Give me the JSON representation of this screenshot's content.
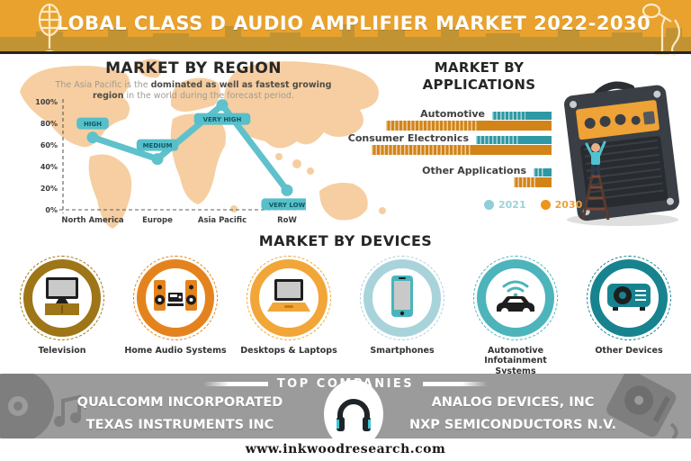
{
  "header": {
    "title": "GLOBAL CLASS D AUDIO AMPLIFIER MARKET 2022-2030"
  },
  "region": {
    "title": "MARKET BY REGION",
    "subtitle": [
      {
        "text": "The Asia Pacific is the ",
        "bold": false
      },
      {
        "text": "dominated as well as fastest growing region",
        "bold": true
      },
      {
        "text": " in the world during the forecast period.",
        "bold": false
      }
    ]
  },
  "applications": {
    "title_line1": "MARKET BY",
    "title_line2": "APPLICATIONS",
    "legend": [
      {
        "label": "2021",
        "dot_color": "#8FCEDA",
        "text_color": "#9ED2D9"
      },
      {
        "label": "2030",
        "dot_color": "#F0931C",
        "text_color": "#EFA03C"
      }
    ]
  },
  "devices": {
    "title": "MARKET BY DEVICES",
    "items": [
      {
        "label": "Television",
        "icon": "television-icon",
        "ring_color": "#9E7517"
      },
      {
        "label": "Home Audio Systems",
        "icon": "home-audio-icon",
        "ring_color": "#E4831D"
      },
      {
        "label": "Desktops & Laptops",
        "icon": "laptop-icon",
        "ring_color": "#F1A637"
      },
      {
        "label": "Smartphones",
        "icon": "smartphone-icon",
        "ring_color": "#A9D3DA"
      },
      {
        "label": "Automotive Infotainment Systems",
        "icon": "car-infotainment-icon",
        "ring_color": "#4DB4BC"
      },
      {
        "label": "Other Devices",
        "icon": "projector-icon",
        "ring_color": "#17838F"
      }
    ]
  },
  "top_companies": {
    "heading": "TOP COMPANIES",
    "left": [
      "QUALCOMM INCORPORATED",
      "TEXAS INSTRUMENTS INC"
    ],
    "right": [
      "ANALOG DEVICES, INC",
      "NXP SEMICONDUCTORS N.V."
    ],
    "center_icon": "headphones-icon"
  },
  "footer": {
    "website": "www.inkwoodresearch.com"
  },
  "chart_data": [
    {
      "type": "line",
      "title": "MARKET BY REGION",
      "categories": [
        "North America",
        "Europe",
        "Asia Pacific",
        "RoW"
      ],
      "values": [
        67,
        47,
        97,
        18
      ],
      "point_labels": [
        "HIGH",
        "MEDIUM",
        "VERY HIGH",
        "VERY LOW"
      ],
      "yticks": [
        "0%",
        "20%",
        "40%",
        "60%",
        "80%",
        "100%"
      ],
      "ylim": [
        0,
        100
      ],
      "line_color": "#5EC1CC",
      "pill_bg": "#57BFCA",
      "pill_text": "#0E5A63",
      "grid": false
    },
    {
      "type": "bar",
      "title": "MARKET BY APPLICATIONS",
      "orientation": "horizontal",
      "categories": [
        "Automotive",
        "Consumer Electronics",
        "Other Applications"
      ],
      "series": [
        {
          "name": "2021",
          "color": "#2E99A4",
          "values": [
            33,
            42,
            10
          ]
        },
        {
          "name": "2030",
          "color": "#D28419",
          "values": [
            92,
            100,
            21
          ]
        }
      ],
      "ylim": [
        0,
        100
      ],
      "legend_position": "bottom-right"
    }
  ],
  "colors": {
    "header_bg": "#E8A22D",
    "header_skyline": "#C29333",
    "map_fill": "#F6CEA1",
    "band_gray": "#9B9B9B",
    "amp_body": "#3A3F45",
    "amp_panel": "#EFA235"
  }
}
